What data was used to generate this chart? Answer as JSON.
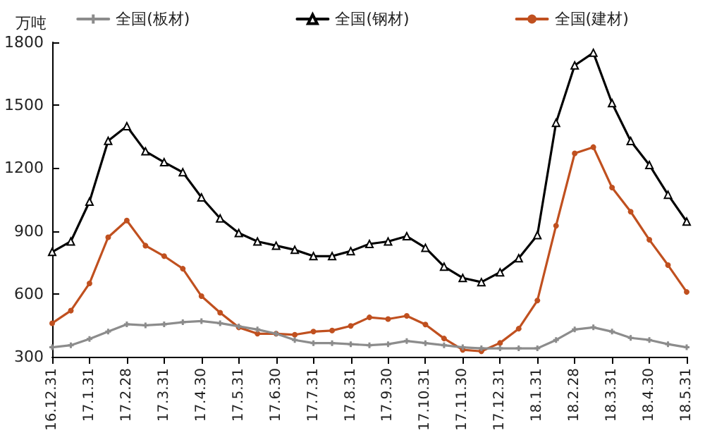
{
  "chart_data": {
    "type": "line",
    "ylabel": "万吨",
    "legend": "top",
    "grid": false,
    "line_style": "solid",
    "categories": [
      "16.12.31",
      null,
      "17.1.31",
      null,
      "17.2.28",
      null,
      "17.3.31",
      null,
      "17.4.30",
      null,
      "17.5.31",
      null,
      "17.6.30",
      null,
      "17.7.31",
      null,
      "17.8.31",
      null,
      "17.9.30",
      null,
      "17.10.31",
      null,
      "17.11.30",
      null,
      "17.12.31",
      null,
      "18.1.31",
      null,
      "18.2.28",
      null,
      "18.3.31",
      null,
      "18.4.30",
      null,
      "18.5.31"
    ],
    "ylim": [
      300,
      1800
    ],
    "yticks": [
      300,
      600,
      900,
      1200,
      1500,
      1800
    ],
    "series": [
      {
        "name": "全国(板材)",
        "color": "#8c8c8c",
        "marker": "cross",
        "values": [
          345,
          355,
          385,
          420,
          455,
          450,
          455,
          465,
          470,
          460,
          445,
          430,
          410,
          380,
          365,
          365,
          360,
          355,
          360,
          375,
          365,
          355,
          345,
          340,
          340,
          340,
          340,
          380,
          430,
          440,
          420,
          390,
          380,
          360,
          345
        ]
      },
      {
        "name": "全国(钢材)",
        "color": "#000000",
        "marker": "triangle",
        "values": [
          800,
          850,
          1040,
          1330,
          1400,
          1280,
          1228,
          1180,
          1060,
          960,
          890,
          850,
          830,
          810,
          780,
          780,
          804,
          838,
          850,
          875,
          820,
          730,
          676,
          656,
          703,
          770,
          880,
          1416,
          1690,
          1750,
          1510,
          1329,
          1215,
          1073,
          945
        ]
      },
      {
        "name": "全国(建材)",
        "color": "#c0501f",
        "marker": "circle",
        "values": [
          460,
          520,
          650,
          870,
          950,
          830,
          780,
          720,
          589,
          510,
          440,
          410,
          410,
          405,
          420,
          425,
          447,
          488,
          480,
          495,
          454,
          387,
          333,
          326,
          366,
          434,
          568,
          925,
          1270,
          1300,
          1107,
          992,
          858,
          737,
          609
        ]
      }
    ]
  }
}
